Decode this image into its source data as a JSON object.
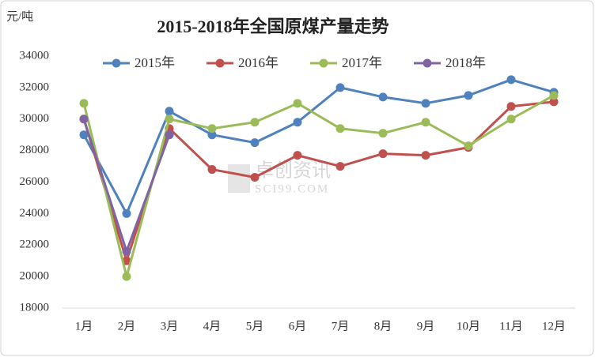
{
  "chart_data": {
    "type": "line",
    "title": "2015-2018年全国原煤产量走势",
    "y_label": "元/吨",
    "watermark": [
      "卓创资讯",
      "SCI99.COM"
    ],
    "categories": [
      "1月",
      "2月",
      "3月",
      "4月",
      "5月",
      "6月",
      "7月",
      "8月",
      "9月",
      "10月",
      "11月",
      "12月"
    ],
    "series": [
      {
        "name": "2015年",
        "color": "#4f81bd",
        "values": [
          29000,
          24000,
          30500,
          29000,
          28500,
          29800,
          32000,
          31400,
          31000,
          31500,
          32500,
          31700
        ]
      },
      {
        "name": "2016年",
        "color": "#c0504d",
        "values": [
          30000,
          21000,
          29400,
          26800,
          26300,
          27700,
          27000,
          27800,
          27700,
          28200,
          30800,
          31100
        ]
      },
      {
        "name": "2017年",
        "color": "#9bbb59",
        "values": [
          31000,
          20000,
          30000,
          29400,
          29800,
          31000,
          29400,
          29100,
          29800,
          28300,
          30000,
          31500
        ]
      },
      {
        "name": "2018年",
        "color": "#8064a2",
        "values": [
          30000,
          21600,
          29000,
          null,
          null,
          null,
          null,
          null,
          null,
          null,
          null,
          null
        ]
      }
    ],
    "ylim": [
      18000,
      34000
    ],
    "yticks": [
      18000,
      20000,
      22000,
      24000,
      26000,
      28000,
      30000,
      32000,
      34000
    ],
    "legend": "top"
  }
}
